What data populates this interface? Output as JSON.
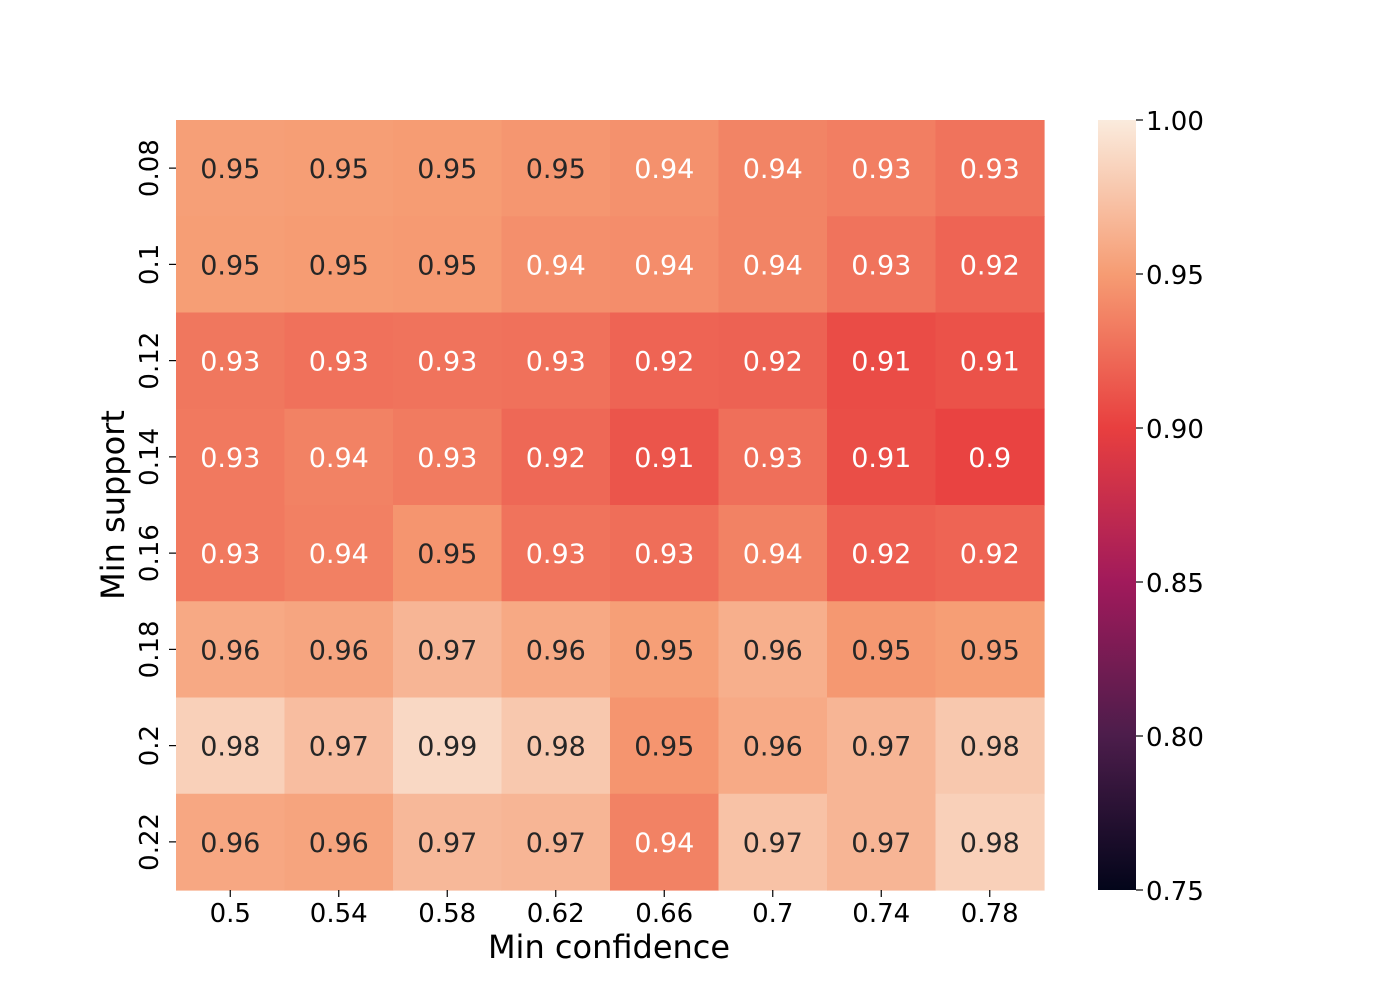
{
  "chart_data": {
    "type": "heatmap",
    "title": "",
    "xlabel": "Min confidence",
    "ylabel": "Min support",
    "x_categories": [
      "0.5",
      "0.54",
      "0.58",
      "0.62",
      "0.66",
      "0.7",
      "0.74",
      "0.78"
    ],
    "y_categories": [
      "0.08",
      "0.1",
      "0.12",
      "0.14",
      "0.16",
      "0.18",
      "0.2",
      "0.22"
    ],
    "values": [
      [
        0.952,
        0.951,
        0.95,
        0.947,
        0.944,
        0.937,
        0.934,
        0.928
      ],
      [
        0.951,
        0.95,
        0.949,
        0.943,
        0.942,
        0.937,
        0.928,
        0.92
      ],
      [
        0.93,
        0.927,
        0.928,
        0.927,
        0.92,
        0.919,
        0.907,
        0.91
      ],
      [
        0.931,
        0.936,
        0.932,
        0.922,
        0.912,
        0.926,
        0.908,
        0.902
      ],
      [
        0.931,
        0.935,
        0.946,
        0.928,
        0.925,
        0.936,
        0.917,
        0.92
      ],
      [
        0.958,
        0.956,
        0.966,
        0.958,
        0.952,
        0.962,
        0.948,
        0.951
      ],
      [
        0.983,
        0.971,
        0.988,
        0.978,
        0.946,
        0.959,
        0.966,
        0.978
      ],
      [
        0.957,
        0.955,
        0.968,
        0.966,
        0.936,
        0.974,
        0.966,
        0.983
      ]
    ],
    "labels": [
      [
        "0.95",
        "0.95",
        "0.95",
        "0.95",
        "0.94",
        "0.94",
        "0.93",
        "0.93"
      ],
      [
        "0.95",
        "0.95",
        "0.95",
        "0.94",
        "0.94",
        "0.94",
        "0.93",
        "0.92"
      ],
      [
        "0.93",
        "0.93",
        "0.93",
        "0.93",
        "0.92",
        "0.92",
        "0.91",
        "0.91"
      ],
      [
        "0.93",
        "0.94",
        "0.93",
        "0.92",
        "0.91",
        "0.93",
        "0.91",
        "0.9"
      ],
      [
        "0.93",
        "0.94",
        "0.95",
        "0.93",
        "0.93",
        "0.94",
        "0.92",
        "0.92"
      ],
      [
        "0.96",
        "0.96",
        "0.97",
        "0.96",
        "0.95",
        "0.96",
        "0.95",
        "0.95"
      ],
      [
        "0.98",
        "0.97",
        "0.99",
        "0.98",
        "0.95",
        "0.96",
        "0.97",
        "0.98"
      ],
      [
        "0.96",
        "0.96",
        "0.97",
        "0.97",
        "0.94",
        "0.97",
        "0.97",
        "0.98"
      ]
    ],
    "vmin": 0.75,
    "vmax": 1.0,
    "colorbar_ticks": [
      "0.75",
      "0.80",
      "0.85",
      "0.90",
      "0.95",
      "1.00"
    ],
    "colormap": "rocket",
    "colormap_stops": [
      "#03051a",
      "#4c1d4b",
      "#a11a5b",
      "#e83f3f",
      "#f69c73",
      "#faebdd"
    ],
    "text_color_dark": "#262626",
    "text_color_light": "#ffffff"
  }
}
